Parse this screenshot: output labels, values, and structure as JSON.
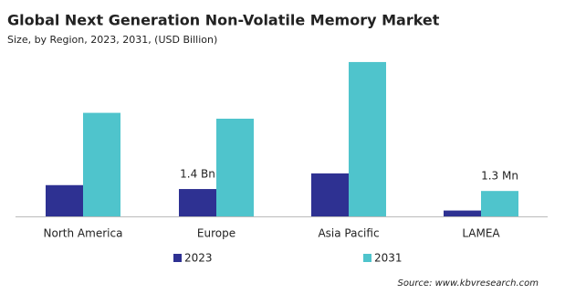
{
  "chart_data": {
    "type": "bar",
    "title": "Global Next Generation Non-Volatile Memory Market",
    "subtitle": "Size, by Region, 2023, 2031, (USD Billion)",
    "categories": [
      "North America",
      "Europe",
      "Asia Pacific",
      "LAMEA"
    ],
    "series": [
      {
        "name": "2023",
        "color": "#2e3192",
        "values": [
          1.6,
          1.4,
          2.2,
          0.3
        ],
        "value_labels": [
          null,
          "1.4 Bn",
          null,
          null
        ]
      },
      {
        "name": "2031",
        "color": "#4fc4cc",
        "values": [
          5.3,
          5.0,
          7.9,
          1.3
        ]
      }
    ],
    "annotations": [
      "1.3 Mn"
    ],
    "source": "Source: www.kbvresearch.com"
  }
}
